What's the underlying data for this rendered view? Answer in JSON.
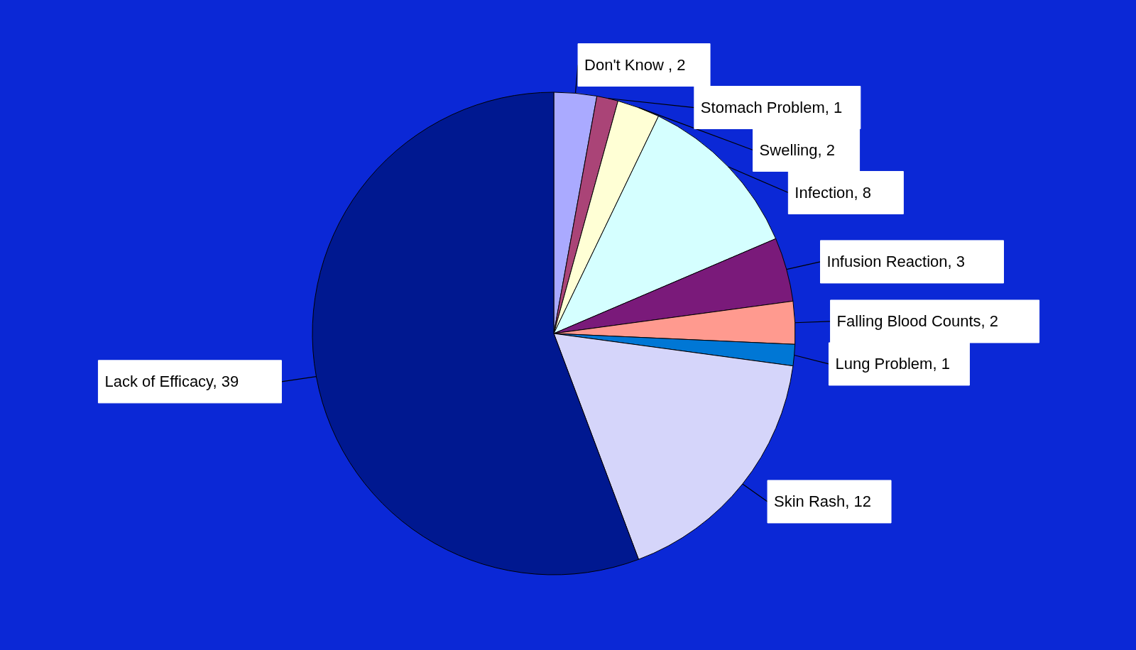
{
  "chart_data": {
    "type": "pie",
    "categories": [
      "Don't Know , 2",
      "Stomach Problem, 1",
      "Swelling, 2",
      "Infection, 8",
      "Infusion Reaction, 3",
      "Falling Blood Counts, 2",
      "Lung Problem, 1",
      "Skin Rash, 12",
      "Lack of Efficacy, 39"
    ],
    "values": [
      2,
      1,
      2,
      8,
      3,
      2,
      1,
      12,
      39
    ],
    "colors": [
      "#aaaaff",
      "#aa4477",
      "#ffffd5",
      "#d5ffff",
      "#7a1a7a",
      "#ff9a8f",
      "#0077d5",
      "#d5d5fa",
      "#001890"
    ],
    "legend": false
  }
}
